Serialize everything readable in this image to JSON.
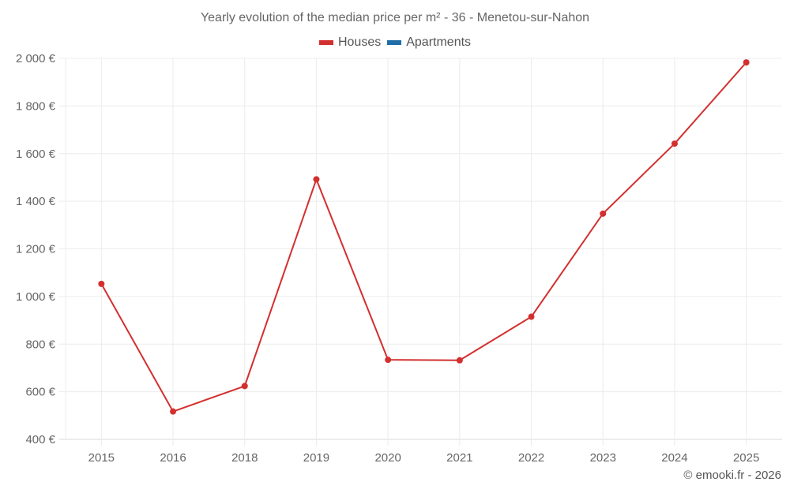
{
  "chart_data": {
    "type": "line",
    "title": "Yearly evolution of the median price per m² - 36 - Menetou-sur-Nahon",
    "xlabel": "",
    "ylabel": "",
    "categories": [
      "2015",
      "2016",
      "2018",
      "2019",
      "2020",
      "2021",
      "2022",
      "2023",
      "2024",
      "2025"
    ],
    "series": [
      {
        "name": "Houses",
        "color": "#d32f2f",
        "values": [
          1053,
          517,
          624,
          1492,
          734,
          732,
          915,
          1348,
          1642,
          1983
        ]
      },
      {
        "name": "Apartments",
        "color": "#1f6ea8",
        "values": []
      }
    ],
    "ylim": [
      400,
      2000
    ],
    "yticks": [
      400,
      600,
      800,
      1000,
      1200,
      1400,
      1600,
      1800,
      2000
    ],
    "ytick_labels": [
      "400 €",
      "600 €",
      "800 €",
      "1 000 €",
      "1 200 €",
      "1 400 €",
      "1 600 €",
      "1 800 €",
      "2 000 €"
    ],
    "grid": true,
    "legend_position": "top-center"
  },
  "legend": {
    "items": [
      {
        "label": "Houses",
        "color": "#d32f2f"
      },
      {
        "label": "Apartments",
        "color": "#1f6ea8"
      }
    ]
  },
  "credit": "© emooki.fr - 2026"
}
